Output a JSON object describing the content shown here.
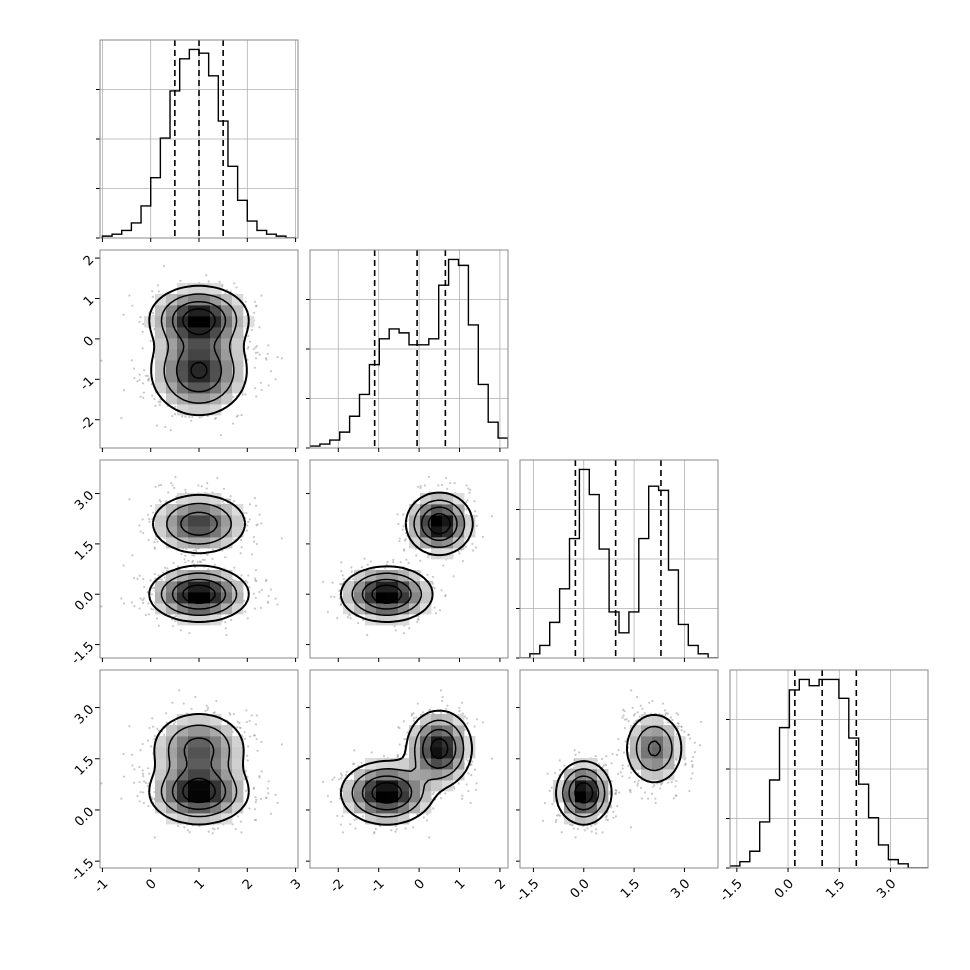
{
  "chart_data": {
    "type": "corner",
    "parameters": 4,
    "colors": {
      "ink": "#000000",
      "grid": "#b0b0b0",
      "frame": "#888888",
      "background": "#ffffff"
    },
    "grid": true,
    "axis_ranges": [
      [
        -1.05,
        3.05
      ],
      [
        -2.7,
        2.2
      ],
      [
        -1.9,
        4.0
      ],
      [
        -1.7,
        4.1
      ]
    ],
    "x_ticks": [
      [
        "-1",
        "0",
        "1",
        "2",
        "3"
      ],
      [
        "-2",
        "-1",
        "0",
        "1",
        "2"
      ],
      [
        "-1.5",
        "0.0",
        "1.5",
        "3.0"
      ],
      [
        "-1.5",
        "0.0",
        "1.5",
        "3.0"
      ]
    ],
    "x_tick_values": [
      [
        -1,
        0,
        1,
        2,
        3
      ],
      [
        -2,
        -1,
        0,
        1,
        2
      ],
      [
        -1.5,
        0.0,
        1.5,
        3.0
      ],
      [
        -1.5,
        0.0,
        1.5,
        3.0
      ]
    ],
    "y_ticks": [
      [],
      [
        "-2",
        "-1",
        "0",
        "1",
        "2"
      ],
      [
        "-1.5",
        "0.0",
        "1.5",
        "3.0"
      ],
      [
        "-1.5",
        "0.0",
        "1.5",
        "3.0"
      ]
    ],
    "y_tick_values": [
      [],
      [
        -2,
        -1,
        0,
        1,
        2
      ],
      [
        -1.5,
        0.0,
        1.5,
        3.0
      ],
      [
        -1.5,
        0.0,
        1.5,
        3.0
      ]
    ],
    "quantiles": [
      [
        0.5,
        1.0,
        1.5
      ],
      [
        -1.1,
        -0.05,
        0.65
      ],
      [
        -0.25,
        0.95,
        2.3
      ],
      [
        0.2,
        1.0,
        2.0
      ]
    ],
    "histograms": [
      {
        "bin_edges_range": [
          -1.0,
          3.0
        ],
        "counts": [
          1,
          2,
          4,
          8,
          17,
          32,
          53,
          78,
          95,
          100,
          98,
          86,
          62,
          38,
          20,
          9,
          4,
          2,
          1,
          0
        ]
      },
      {
        "bin_edges_range": [
          -2.7,
          2.2
        ],
        "counts": [
          1,
          2,
          4,
          8,
          16,
          27,
          42,
          55,
          60,
          58,
          52,
          52,
          55,
          82,
          95,
          92,
          62,
          32,
          13,
          5
        ]
      },
      {
        "bin_edges_range": [
          -1.9,
          4.0
        ],
        "counts": [
          0,
          2,
          6,
          17,
          33,
          57,
          90,
          78,
          52,
          22,
          12,
          22,
          57,
          82,
          80,
          42,
          16,
          6,
          2,
          0
        ]
      },
      {
        "bin_edges_range": [
          -1.7,
          4.1
        ],
        "counts": [
          1,
          3,
          8,
          22,
          42,
          67,
          85,
          90,
          87,
          90,
          90,
          81,
          62,
          40,
          24,
          11,
          4,
          2,
          0,
          0
        ]
      }
    ],
    "components": [
      {
        "weight": 0.45,
        "mean": [
          1.0,
          0.5,
          2.1,
          1.8
        ],
        "std": [
          0.5,
          0.4,
          0.45,
          0.55
        ]
      },
      {
        "weight": 0.55,
        "mean": [
          1.0,
          -0.8,
          0.0,
          0.5
        ],
        "std": [
          0.5,
          0.55,
          0.4,
          0.45
        ]
      }
    ]
  }
}
